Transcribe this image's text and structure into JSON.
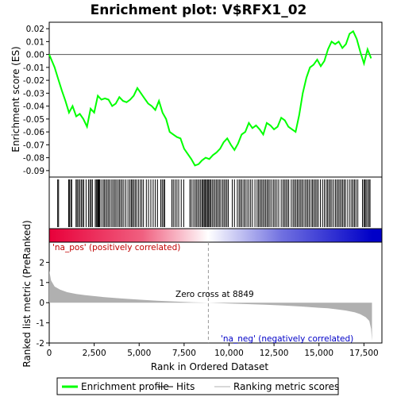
{
  "chart_data": {
    "type": "line",
    "title": "Enrichment plot: V$RFX1_02",
    "es_panel": {
      "ylabel": "Enrichment score (ES)",
      "ylim": [
        -0.095,
        0.025
      ],
      "yticks": [
        0.02,
        0.01,
        0.0,
        -0.01,
        -0.02,
        -0.03,
        -0.04,
        -0.05,
        -0.06,
        -0.07,
        -0.08,
        -0.09
      ],
      "ytick_labels": [
        "0.02",
        "0.01",
        "0.00",
        "-0.01",
        "-0.02",
        "-0.03",
        "-0.04",
        "-0.05",
        "-0.06",
        "-0.07",
        "-0.08",
        "-0.09"
      ],
      "series": [
        {
          "name": "Enrichment profile",
          "color": "#00ff00",
          "x": [
            0,
            300,
            500,
            700,
            900,
            1100,
            1300,
            1500,
            1700,
            1900,
            2100,
            2300,
            2500,
            2700,
            2900,
            3100,
            3300,
            3500,
            3700,
            3900,
            4100,
            4300,
            4500,
            4700,
            4900,
            5100,
            5300,
            5500,
            5700,
            5900,
            6100,
            6300,
            6500,
            6700,
            6900,
            7100,
            7300,
            7500,
            7700,
            7900,
            8100,
            8300,
            8500,
            8700,
            8900,
            9100,
            9300,
            9500,
            9700,
            9900,
            10100,
            10300,
            10500,
            10700,
            10900,
            11100,
            11300,
            11500,
            11700,
            11900,
            12100,
            12300,
            12500,
            12700,
            12900,
            13100,
            13300,
            13500,
            13700,
            13900,
            14100,
            14300,
            14500,
            14700,
            14900,
            15100,
            15300,
            15500,
            15700,
            15900,
            16100,
            16300,
            16500,
            16700,
            16900,
            17100,
            17300,
            17500,
            17700,
            17900
          ],
          "y": [
            0.0,
            -0.01,
            -0.019,
            -0.028,
            -0.036,
            -0.045,
            -0.04,
            -0.048,
            -0.046,
            -0.05,
            -0.056,
            -0.042,
            -0.045,
            -0.032,
            -0.035,
            -0.034,
            -0.035,
            -0.04,
            -0.038,
            -0.033,
            -0.036,
            -0.037,
            -0.035,
            -0.032,
            -0.026,
            -0.03,
            -0.034,
            -0.038,
            -0.04,
            -0.043,
            -0.036,
            -0.045,
            -0.05,
            -0.06,
            -0.062,
            -0.064,
            -0.065,
            -0.073,
            -0.077,
            -0.081,
            -0.086,
            -0.085,
            -0.082,
            -0.08,
            -0.081,
            -0.078,
            -0.076,
            -0.073,
            -0.068,
            -0.065,
            -0.07,
            -0.074,
            -0.069,
            -0.062,
            -0.06,
            -0.053,
            -0.057,
            -0.055,
            -0.058,
            -0.062,
            -0.053,
            -0.055,
            -0.058,
            -0.056,
            -0.049,
            -0.051,
            -0.056,
            -0.058,
            -0.06,
            -0.047,
            -0.03,
            -0.018,
            -0.01,
            -0.008,
            -0.004,
            -0.009,
            -0.005,
            0.004,
            0.01,
            0.008,
            0.01,
            0.005,
            0.008,
            0.016,
            0.018,
            0.012,
            0.002,
            -0.007,
            0.004,
            -0.003
          ]
        }
      ]
    },
    "hits": {
      "name": "Hits",
      "positions": [
        470,
        520,
        1080,
        1120,
        1200,
        1250,
        1490,
        1550,
        1620,
        1700,
        1780,
        1850,
        1920,
        2050,
        2180,
        2260,
        2330,
        2400,
        2560,
        2620,
        2680,
        2720,
        2760,
        2800,
        2880,
        2990,
        3060,
        3140,
        3220,
        3300,
        3380,
        3480,
        3560,
        3650,
        3720,
        3820,
        3900,
        3980,
        4060,
        4150,
        4260,
        4380,
        4480,
        4560,
        4620,
        4700,
        4780,
        4860,
        4960,
        5060,
        5150,
        5240,
        5400,
        5520,
        5650,
        5780,
        5900,
        6020,
        6200,
        6280,
        6360,
        6420,
        6820,
        6900,
        7000,
        7100,
        7200,
        7340,
        7480,
        7820,
        7900,
        8000,
        8100,
        8180,
        8260,
        8340,
        8420,
        8500,
        8560,
        8620,
        8680,
        8740,
        8800,
        8860,
        8920,
        8980,
        9060,
        9140,
        9220,
        9300,
        9380,
        9460,
        9540,
        9640,
        9720,
        9800,
        9880,
        9960,
        10180,
        10300,
        10460,
        10560,
        10640,
        10720,
        10820,
        10900,
        11000,
        11100,
        11200,
        11300,
        11440,
        11560,
        11640,
        11720,
        11800,
        11880,
        11960,
        12040,
        12120,
        12200,
        12280,
        12380,
        12480,
        12560,
        12660,
        12760,
        12900,
        13000,
        13080,
        13160,
        13240,
        13320,
        13460,
        13560,
        13640,
        13720,
        13800,
        13880,
        13960,
        14040,
        14120,
        14220,
        14300,
        14380,
        14460,
        14560,
        14640,
        14720,
        14800,
        14880,
        14960,
        15080,
        15200,
        15300,
        15400,
        15480,
        15560,
        15640,
        15720,
        15820,
        15920,
        16000,
        16080,
        16160,
        16240,
        16320,
        16400,
        16480,
        16600,
        16720,
        16820,
        16900,
        16980,
        17060,
        17160,
        17420,
        17500,
        17560,
        17620,
        17700,
        17780,
        17840
      ]
    },
    "rank_colors": {
      "pos_color": "#e8003a",
      "neg_color": "#0000c8",
      "mid_color": "#ffffff"
    },
    "metric_panel": {
      "ylabel": "Ranked list metric (PreRanked)",
      "ylim": [
        -2.0,
        3.0
      ],
      "yticks": [
        2,
        1,
        0,
        -1,
        -2
      ],
      "ytick_labels": [
        "2",
        "1",
        "0",
        "-1",
        "-2"
      ],
      "fill_color": "#b0b0b0",
      "x": [
        0,
        100,
        300,
        600,
        1000,
        1500,
        2000,
        3000,
        4000,
        5000,
        6000,
        7000,
        8000,
        8849,
        10000,
        11000,
        12000,
        13000,
        14000,
        15000,
        15500,
        16000,
        16500,
        17000,
        17300,
        17600,
        17800,
        17900,
        17950
      ],
      "y": [
        1.6,
        1.1,
        0.8,
        0.65,
        0.52,
        0.43,
        0.37,
        0.28,
        0.21,
        0.15,
        0.1,
        0.06,
        0.02,
        0.0,
        -0.04,
        -0.07,
        -0.1,
        -0.14,
        -0.19,
        -0.25,
        -0.28,
        -0.33,
        -0.39,
        -0.48,
        -0.57,
        -0.72,
        -0.9,
        -1.3,
        -1.9
      ]
    },
    "xaxis": {
      "xlabel": "Rank in Ordered Dataset",
      "xlim": [
        0,
        18500
      ],
      "xticks": [
        0,
        2500,
        5000,
        7500,
        10000,
        12500,
        15000,
        17500
      ],
      "xtick_labels": [
        "0",
        "2,500",
        "5,000",
        "7,500",
        "10,000",
        "12,500",
        "15,000",
        "17,500"
      ],
      "n_genes": 17950
    },
    "annotations": {
      "pos_label": "'na_pos' (positively correlated)",
      "neg_label": "'na_neg' (negatively correlated)",
      "zero_cross_label": "Zero cross at 8849",
      "zero_cross": 8849
    },
    "legend": {
      "placement": "bottom",
      "items": [
        {
          "label": "Enrichment profile",
          "color": "#00ff00",
          "kind": "line-thick"
        },
        {
          "label": "Hits",
          "color": "#000000",
          "kind": "line"
        },
        {
          "label": "Ranking metric scores",
          "color": "#b0b0b0",
          "kind": "line"
        }
      ]
    }
  }
}
